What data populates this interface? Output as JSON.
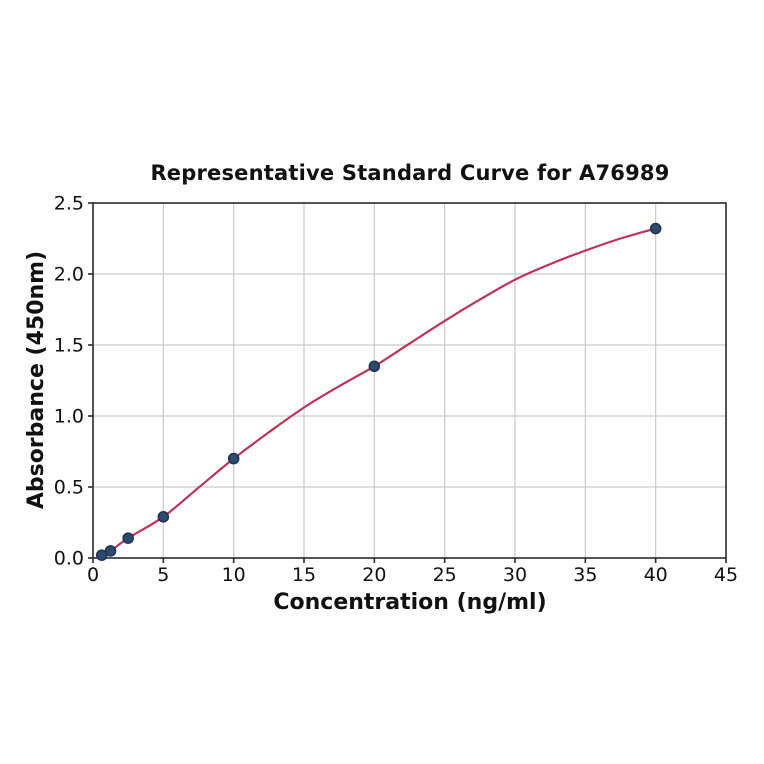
{
  "figure": {
    "title": "Representative Standard Curve for A76989",
    "xlabel": "Concentration (ng/ml)",
    "ylabel": "Absorbance (450nm)"
  },
  "chart_data": {
    "type": "scatter",
    "title": "Representative Standard Curve for A76989",
    "xlabel": "Concentration (ng/ml)",
    "ylabel": "Absorbance (450nm)",
    "xlim": [
      0,
      45
    ],
    "ylim": [
      0,
      2.5
    ],
    "xticks": [
      0,
      5,
      10,
      15,
      20,
      25,
      30,
      35,
      40,
      45
    ],
    "xtick_labels": [
      "0",
      "5",
      "10",
      "15",
      "20",
      "25",
      "30",
      "35",
      "40",
      "45"
    ],
    "yticks": [
      0.0,
      0.5,
      1.0,
      1.5,
      2.0,
      2.5
    ],
    "ytick_labels": [
      "0.0",
      "0.5",
      "1.0",
      "1.5",
      "2.0",
      "2.5"
    ],
    "grid": true,
    "legend": "none",
    "points": [
      {
        "x": 0.625,
        "y": 0.02
      },
      {
        "x": 1.25,
        "y": 0.05
      },
      {
        "x": 2.5,
        "y": 0.14
      },
      {
        "x": 5,
        "y": 0.29
      },
      {
        "x": 10,
        "y": 0.7
      },
      {
        "x": 20,
        "y": 1.35
      },
      {
        "x": 40,
        "y": 2.32
      }
    ],
    "fit_curve": [
      [
        0.55,
        0.015
      ],
      [
        1.25,
        0.05
      ],
      [
        2.5,
        0.14
      ],
      [
        5,
        0.29
      ],
      [
        7.5,
        0.495
      ],
      [
        10,
        0.7
      ],
      [
        12.5,
        0.885
      ],
      [
        15,
        1.06
      ],
      [
        17.5,
        1.21
      ],
      [
        20,
        1.35
      ],
      [
        22.5,
        1.51
      ],
      [
        25,
        1.67
      ],
      [
        27.5,
        1.82
      ],
      [
        30,
        1.96
      ],
      [
        32.5,
        2.07
      ],
      [
        35,
        2.165
      ],
      [
        37.5,
        2.25
      ],
      [
        40,
        2.32
      ]
    ],
    "colors": {
      "curve": "#bd3359",
      "marker_fill": "#2e4a70",
      "marker_edge": "#1f3552",
      "grid": "#c9c9c9",
      "spine": "#2a2a2a",
      "text": "#111111",
      "background": "#ffffff"
    }
  }
}
